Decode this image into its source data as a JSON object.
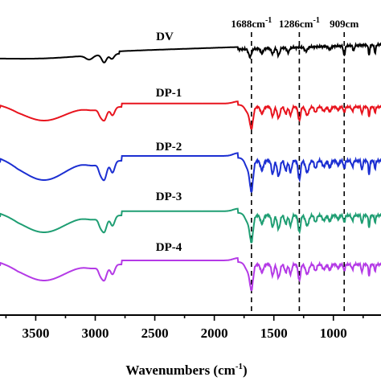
{
  "chart_data": {
    "type": "line",
    "xlabel": "Wavenumbers (cm",
    "xlabel_sup": "-1",
    "xlabel_end": ")",
    "x_reversed": true,
    "xlim": [
      3800,
      600
    ],
    "x_ticks": [
      3500,
      3000,
      2500,
      2000,
      1500,
      1000
    ],
    "x_tick_labels": [
      "3500",
      "3000",
      "2500",
      "2000",
      "1500",
      "1000"
    ],
    "grid": false,
    "annotations": [
      {
        "x": 1688,
        "text": "1688cm",
        "sup": "-1"
      },
      {
        "x": 1286,
        "text": "1286cm",
        "sup": "-1"
      },
      {
        "x": 909,
        "text": "909cm",
        "sup": ""
      }
    ],
    "series": [
      {
        "name": "DV",
        "color": "#000000",
        "profile": "dv"
      },
      {
        "name": "DP-1",
        "color": "#e8141e",
        "profile": "dp"
      },
      {
        "name": "DP-2",
        "color": "#1c2fd2",
        "profile": "dp"
      },
      {
        "name": "DP-3",
        "color": "#1f9e73",
        "profile": "dp"
      },
      {
        "name": "DP-4",
        "color": "#b43ae6",
        "profile": "dp"
      }
    ]
  }
}
